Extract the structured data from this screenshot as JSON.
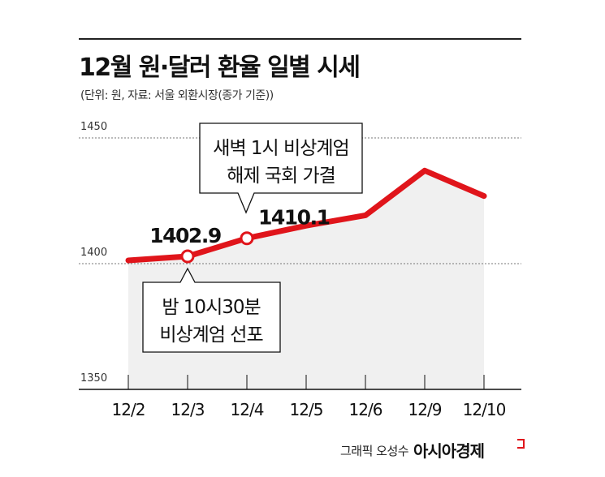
{
  "title": "12월 원·달러 환율 일별 시세",
  "subtitle": "(단위: 원, 자료: 서울 외환시장(종가 기준))",
  "credit": "그래픽 오성수",
  "brand": "아시아경제",
  "colors": {
    "line": "#e0151b",
    "area": "#f0f0f0",
    "text": "#111111"
  },
  "chart_data": {
    "type": "line",
    "title": "12월 원·달러 환율 일별 시세",
    "ylabel": "원",
    "categories": [
      "12/2",
      "12/3",
      "12/4",
      "12/5",
      "12/6",
      "12/9",
      "12/10"
    ],
    "values": [
      1401.3,
      1402.9,
      1410.1,
      1415.1,
      1419.2,
      1437.0,
      1426.9
    ],
    "ylim": [
      1350,
      1450
    ],
    "yticks": [
      "1450",
      "1400",
      "1350"
    ],
    "grid": true,
    "data_labels": [
      {
        "index": 1,
        "text": "1402.9"
      },
      {
        "index": 2,
        "text": "1410.1"
      }
    ],
    "annotations": [
      {
        "index": 1,
        "lines": [
          "밤 10시30분",
          "비상계엄 선포"
        ]
      },
      {
        "index": 2,
        "lines": [
          "새벽 1시 비상계엄",
          "해제 국회 가결"
        ]
      }
    ]
  }
}
